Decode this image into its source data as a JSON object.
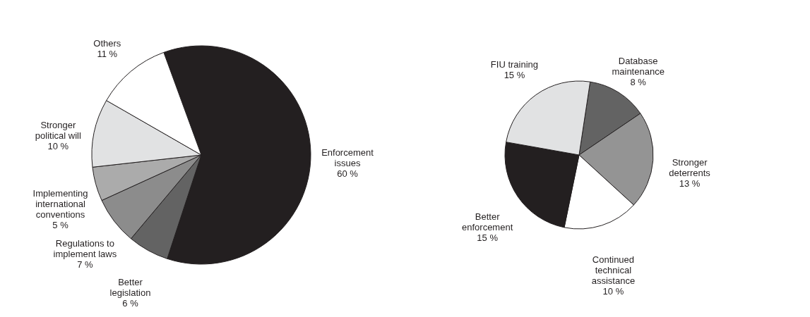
{
  "chart_data": [
    {
      "type": "pie",
      "categories": [
        "Enforcement issues",
        "Better legislation",
        "Regulations to implement laws",
        "Implementing international conventions",
        "Stronger political will",
        "Others"
      ],
      "values": [
        60,
        6,
        7,
        5,
        10,
        11
      ],
      "colors": [
        "#231f20",
        "#636363",
        "#8c8c8c",
        "#ababab",
        "#e1e2e3",
        "#ffffff"
      ],
      "value_labels": [
        "60 %",
        "6 %",
        "7 %",
        "5 %",
        "10 %",
        "11 %"
      ]
    },
    {
      "type": "pie",
      "categories": [
        "Database maintenance",
        "Stronger deterrents",
        "Continued technical assistance",
        "Better enforcement",
        "FIU training"
      ],
      "values": [
        8,
        13,
        10,
        15,
        15
      ],
      "colors": [
        "#636363",
        "#949494",
        "#ffffff",
        "#231f20",
        "#e1e2e3"
      ],
      "value_labels": [
        "8 %",
        "13 %",
        "10 %",
        "15 %",
        "15 %"
      ]
    }
  ]
}
